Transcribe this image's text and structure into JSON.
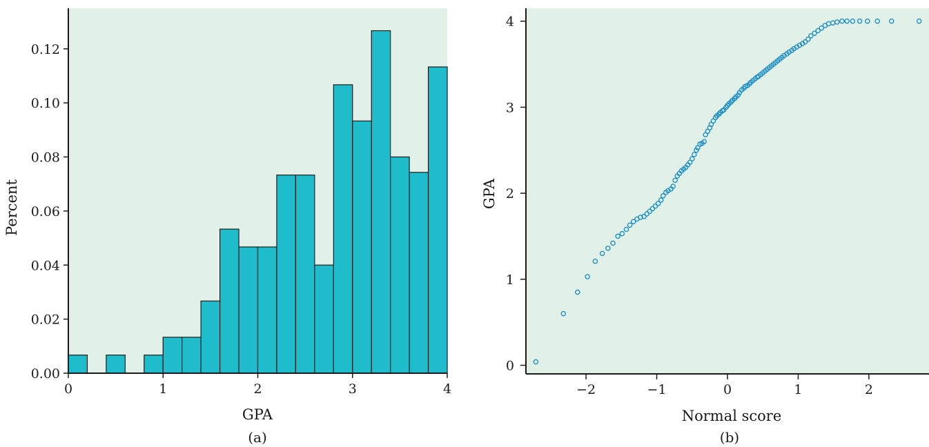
{
  "chart_data": [
    {
      "type": "bar",
      "panel_label": "(a)",
      "xlabel": "GPA",
      "ylabel": "Percent",
      "xlim": [
        0,
        4
      ],
      "ylim": [
        0,
        0.135
      ],
      "x_ticks": [
        "0",
        "1",
        "2",
        "3",
        "4"
      ],
      "y_ticks": [
        "0.00",
        "0.02",
        "0.04",
        "0.06",
        "0.08",
        "0.10",
        "0.12"
      ],
      "bin_width": 0.2,
      "bins": [
        {
          "start": 0.0,
          "value": 0.0067
        },
        {
          "start": 0.2,
          "value": 0.0
        },
        {
          "start": 0.4,
          "value": 0.0067
        },
        {
          "start": 0.6,
          "value": 0.0
        },
        {
          "start": 0.8,
          "value": 0.0067
        },
        {
          "start": 1.0,
          "value": 0.0133
        },
        {
          "start": 1.2,
          "value": 0.0133
        },
        {
          "start": 1.4,
          "value": 0.0267
        },
        {
          "start": 1.6,
          "value": 0.0533
        },
        {
          "start": 1.8,
          "value": 0.0467
        },
        {
          "start": 2.0,
          "value": 0.0467
        },
        {
          "start": 2.2,
          "value": 0.0733
        },
        {
          "start": 2.4,
          "value": 0.0733
        },
        {
          "start": 2.6,
          "value": 0.04
        },
        {
          "start": 2.8,
          "value": 0.1067
        },
        {
          "start": 3.0,
          "value": 0.0933
        },
        {
          "start": 3.2,
          "value": 0.1267
        },
        {
          "start": 3.4,
          "value": 0.08
        },
        {
          "start": 3.6,
          "value": 0.0743
        },
        {
          "start": 3.8,
          "value": 0.1133
        }
      ],
      "colors": {
        "bar": "#1fbdcc",
        "background": "#e1f1e7",
        "edge": "#1a1a1a"
      }
    },
    {
      "type": "scatter",
      "panel_label": "(b)",
      "xlabel": "Normal score",
      "ylabel": "GPA",
      "xlim": [
        -2.85,
        2.85
      ],
      "ylim": [
        -0.1,
        4.15
      ],
      "x_ticks": [
        {
          "value": -2,
          "label": "−2"
        },
        {
          "value": -1,
          "label": "−1"
        },
        {
          "value": 0,
          "label": "0"
        },
        {
          "value": 1,
          "label": "1"
        },
        {
          "value": 2,
          "label": "2"
        }
      ],
      "y_ticks": [
        {
          "value": 0,
          "label": "0"
        },
        {
          "value": 1,
          "label": "1"
        },
        {
          "value": 2,
          "label": "2"
        },
        {
          "value": 3,
          "label": "3"
        },
        {
          "value": 4,
          "label": "4"
        }
      ],
      "points": [
        [
          -2.71,
          0.04
        ],
        [
          -2.32,
          0.6
        ],
        [
          -2.12,
          0.85
        ],
        [
          -1.98,
          1.03
        ],
        [
          -1.87,
          1.21
        ],
        [
          -1.77,
          1.3
        ],
        [
          -1.69,
          1.36
        ],
        [
          -1.62,
          1.42
        ],
        [
          -1.55,
          1.5
        ],
        [
          -1.49,
          1.53
        ],
        [
          -1.43,
          1.58
        ],
        [
          -1.38,
          1.63
        ],
        [
          -1.33,
          1.67
        ],
        [
          -1.28,
          1.7
        ],
        [
          -1.23,
          1.72
        ],
        [
          -1.18,
          1.73
        ],
        [
          -1.14,
          1.76
        ],
        [
          -1.1,
          1.79
        ],
        [
          -1.06,
          1.82
        ],
        [
          -1.02,
          1.85
        ],
        [
          -0.98,
          1.88
        ],
        [
          -0.94,
          1.92
        ],
        [
          -0.91,
          1.97
        ],
        [
          -0.87,
          2.01
        ],
        [
          -0.84,
          2.03
        ],
        [
          -0.8,
          2.05
        ],
        [
          -0.77,
          2.08
        ],
        [
          -0.74,
          2.15
        ],
        [
          -0.71,
          2.2
        ],
        [
          -0.68,
          2.23
        ],
        [
          -0.65,
          2.26
        ],
        [
          -0.62,
          2.28
        ],
        [
          -0.59,
          2.3
        ],
        [
          -0.56,
          2.33
        ],
        [
          -0.53,
          2.36
        ],
        [
          -0.5,
          2.4
        ],
        [
          -0.47,
          2.45
        ],
        [
          -0.44,
          2.5
        ],
        [
          -0.42,
          2.53
        ],
        [
          -0.39,
          2.57
        ],
        [
          -0.36,
          2.58
        ],
        [
          -0.33,
          2.6
        ],
        [
          -0.31,
          2.68
        ],
        [
          -0.28,
          2.72
        ],
        [
          -0.25,
          2.76
        ],
        [
          -0.23,
          2.8
        ],
        [
          -0.2,
          2.84
        ],
        [
          -0.17,
          2.88
        ],
        [
          -0.15,
          2.9
        ],
        [
          -0.12,
          2.92
        ],
        [
          -0.1,
          2.94
        ],
        [
          -0.07,
          2.96
        ],
        [
          -0.05,
          2.97
        ],
        [
          -0.02,
          3.0
        ],
        [
          0.0,
          3.02
        ],
        [
          0.02,
          3.04
        ],
        [
          0.05,
          3.06
        ],
        [
          0.07,
          3.08
        ],
        [
          0.1,
          3.1
        ],
        [
          0.12,
          3.12
        ],
        [
          0.15,
          3.14
        ],
        [
          0.17,
          3.17
        ],
        [
          0.2,
          3.2
        ],
        [
          0.23,
          3.22
        ],
        [
          0.25,
          3.24
        ],
        [
          0.28,
          3.25
        ],
        [
          0.31,
          3.27
        ],
        [
          0.33,
          3.29
        ],
        [
          0.36,
          3.31
        ],
        [
          0.39,
          3.33
        ],
        [
          0.42,
          3.35
        ],
        [
          0.44,
          3.36
        ],
        [
          0.47,
          3.38
        ],
        [
          0.5,
          3.4
        ],
        [
          0.53,
          3.42
        ],
        [
          0.56,
          3.44
        ],
        [
          0.59,
          3.46
        ],
        [
          0.62,
          3.48
        ],
        [
          0.65,
          3.5
        ],
        [
          0.68,
          3.52
        ],
        [
          0.71,
          3.54
        ],
        [
          0.74,
          3.56
        ],
        [
          0.77,
          3.58
        ],
        [
          0.8,
          3.6
        ],
        [
          0.84,
          3.62
        ],
        [
          0.87,
          3.64
        ],
        [
          0.91,
          3.66
        ],
        [
          0.94,
          3.68
        ],
        [
          0.98,
          3.7
        ],
        [
          1.02,
          3.72
        ],
        [
          1.06,
          3.74
        ],
        [
          1.1,
          3.76
        ],
        [
          1.14,
          3.79
        ],
        [
          1.18,
          3.83
        ],
        [
          1.23,
          3.86
        ],
        [
          1.28,
          3.89
        ],
        [
          1.33,
          3.92
        ],
        [
          1.38,
          3.95
        ],
        [
          1.43,
          3.97
        ],
        [
          1.49,
          3.98
        ],
        [
          1.55,
          3.99
        ],
        [
          1.62,
          4.0
        ],
        [
          1.69,
          4.0
        ],
        [
          1.77,
          4.0
        ],
        [
          1.87,
          4.0
        ],
        [
          1.98,
          4.0
        ],
        [
          2.12,
          4.0
        ],
        [
          2.32,
          4.0
        ],
        [
          2.71,
          4.0
        ]
      ],
      "colors": {
        "marker": "#1f8fc8",
        "background": "#e1f1e7",
        "axis": "#1a1a1a"
      }
    }
  ]
}
